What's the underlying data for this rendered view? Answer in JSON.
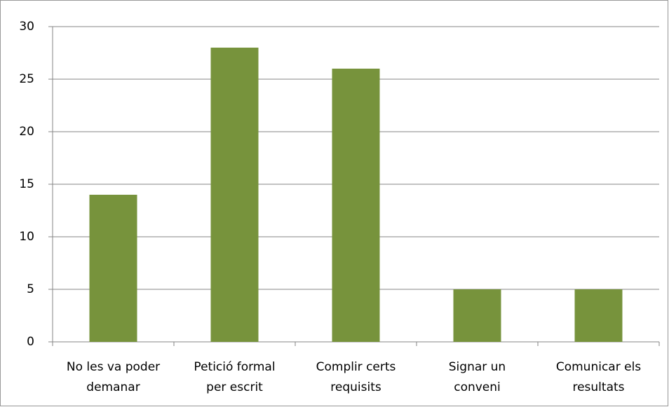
{
  "chart_data": {
    "type": "bar",
    "categories": [
      [
        "No les va poder",
        "demanar"
      ],
      [
        "Petició formal",
        "per escrit"
      ],
      [
        "Complir certs",
        "requisits"
      ],
      [
        "Signar un",
        "conveni"
      ],
      [
        "Comunicar els",
        "resultats"
      ]
    ],
    "values": [
      14,
      28,
      26,
      5,
      5
    ],
    "color": "#77933c",
    "ylim": [
      0,
      30
    ],
    "yticks": [
      0,
      5,
      10,
      15,
      20,
      25,
      30
    ],
    "grid": true
  }
}
